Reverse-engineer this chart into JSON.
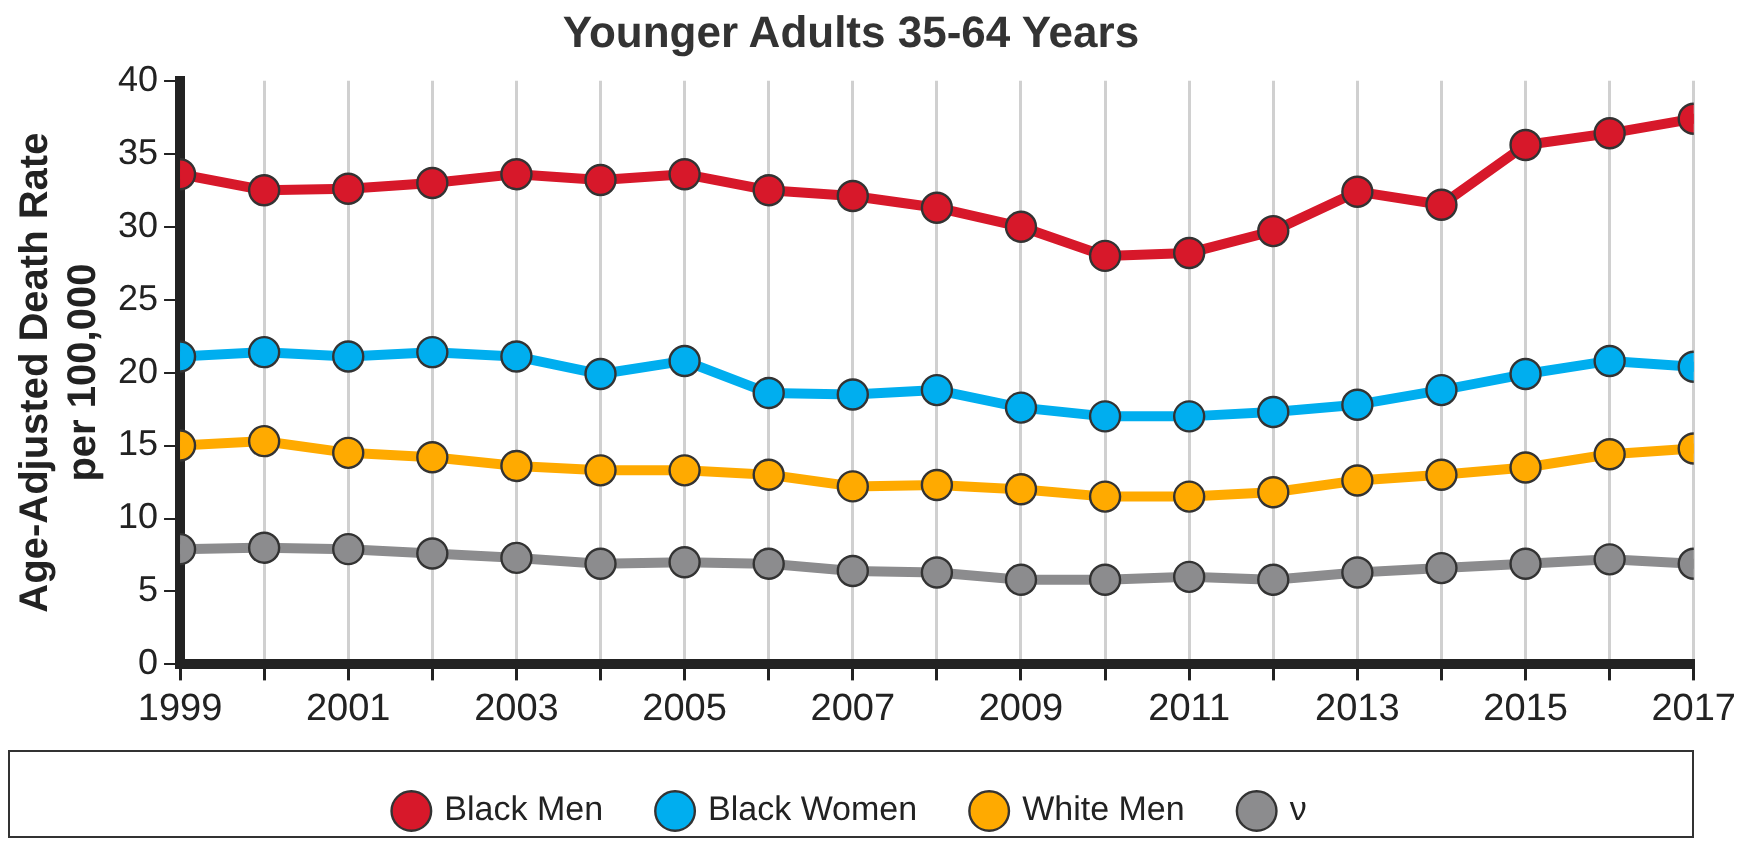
{
  "chart_data": {
    "type": "line",
    "title": "Younger Adults 35-64 Years",
    "ylabel": "Age-Adjusted Death Rate\nper 100,000",
    "x": [
      1999,
      2000,
      2001,
      2002,
      2003,
      2004,
      2005,
      2006,
      2007,
      2008,
      2009,
      2010,
      2011,
      2012,
      2013,
      2014,
      2015,
      2016,
      2017
    ],
    "series": [
      {
        "name": "Black Men",
        "color": "#d7182a",
        "values": [
          33.6,
          32.5,
          32.6,
          33.0,
          33.6,
          33.2,
          33.6,
          32.5,
          32.1,
          31.3,
          30.0,
          28.0,
          28.2,
          29.7,
          32.4,
          31.5,
          35.6,
          36.4,
          37.4
        ]
      },
      {
        "name": "Black Women",
        "color": "#00aeef",
        "values": [
          21.1,
          21.4,
          21.1,
          21.4,
          21.1,
          19.9,
          20.8,
          18.6,
          18.5,
          18.8,
          17.6,
          17.0,
          17.0,
          17.3,
          17.8,
          18.8,
          19.9,
          20.8,
          20.4
        ]
      },
      {
        "name": "White Men",
        "color": "#ffaa00",
        "values": [
          15.0,
          15.3,
          14.5,
          14.2,
          13.6,
          13.3,
          13.3,
          13.0,
          12.2,
          12.3,
          12.0,
          11.5,
          11.5,
          11.8,
          12.6,
          13.0,
          13.5,
          14.4,
          14.8
        ]
      },
      {
        "name": "ν",
        "color": "#8c8c8e",
        "values": [
          7.9,
          8.0,
          7.9,
          7.6,
          7.3,
          6.9,
          7.0,
          6.9,
          6.4,
          6.3,
          5.8,
          5.8,
          6.0,
          5.8,
          6.3,
          6.6,
          6.9,
          7.2,
          6.9
        ]
      }
    ],
    "xlim": [
      1999,
      2017
    ],
    "xticks": [
      1999,
      {
        "value": 2000,
        "label": null
      },
      2001,
      {
        "value": 2002,
        "label": null
      },
      2003,
      {
        "value": 2004,
        "label": null
      },
      2005,
      {
        "value": 2006,
        "label": null
      },
      2007,
      {
        "value": 2008,
        "label": null
      },
      2009,
      {
        "value": 2010,
        "label": null
      },
      2011,
      {
        "value": 2012,
        "label": null
      },
      2013,
      {
        "value": 2014,
        "label": null
      },
      2015,
      {
        "value": 2016,
        "label": null
      },
      2017
    ],
    "ylim": [
      0,
      40
    ],
    "yticks": [
      0,
      5,
      10,
      15,
      20,
      25,
      30,
      35,
      40
    ],
    "grid": "x",
    "legend": "bottom",
    "marker": "circle",
    "line_style": "solid"
  }
}
